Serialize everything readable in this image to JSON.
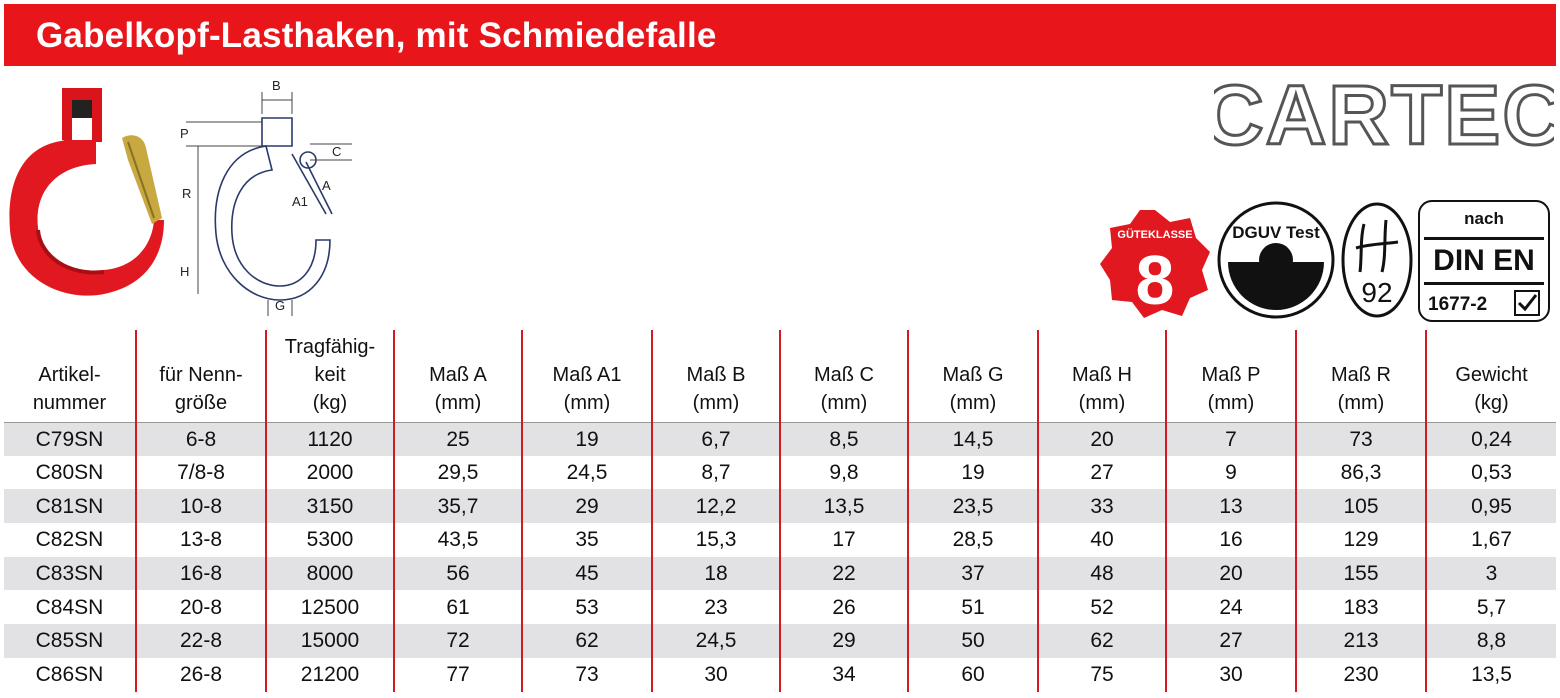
{
  "header": {
    "title": "Gabelkopf-Lasthaken, mit Schmiedefalle"
  },
  "brand": {
    "logo_text": "CARTEC"
  },
  "diagram": {
    "labels": {
      "b": "B",
      "p": "P",
      "c": "C",
      "r": "R",
      "a": "A",
      "a1": "A1",
      "h": "H",
      "g": "G"
    }
  },
  "badges": {
    "gk_text": "GÜTEKLASSE",
    "gk_number": "8",
    "dguv_text": "DGUV Test",
    "h92_text": "92",
    "din_nach": "nach",
    "din_main": "DIN EN",
    "din_number": "1677-2"
  },
  "colors": {
    "accent": "#e8161b",
    "row_shade": "#e2e2e4",
    "divider": "#d61820"
  },
  "table": {
    "headers": [
      [
        "Artikel-",
        "nummer"
      ],
      [
        "für Nenn-",
        "größe"
      ],
      [
        "Tragfähig-",
        "keit",
        "(kg)"
      ],
      [
        "Maß A",
        "(mm)"
      ],
      [
        "Maß A1",
        "(mm)"
      ],
      [
        "Maß B",
        "(mm)"
      ],
      [
        "Maß C",
        "(mm)"
      ],
      [
        "Maß G",
        "(mm)"
      ],
      [
        "Maß H",
        "(mm)"
      ],
      [
        "Maß P",
        "(mm)"
      ],
      [
        "Maß R",
        "(mm)"
      ],
      [
        "Gewicht",
        "(kg)"
      ]
    ],
    "rows": [
      [
        "C79SN",
        "6-8",
        "1120",
        "25",
        "19",
        "6,7",
        "8,5",
        "14,5",
        "20",
        "7",
        "73",
        "0,24"
      ],
      [
        "C80SN",
        "7/8-8",
        "2000",
        "29,5",
        "24,5",
        "8,7",
        "9,8",
        "19",
        "27",
        "9",
        "86,3",
        "0,53"
      ],
      [
        "C81SN",
        "10-8",
        "3150",
        "35,7",
        "29",
        "12,2",
        "13,5",
        "23,5",
        "33",
        "13",
        "105",
        "0,95"
      ],
      [
        "C82SN",
        "13-8",
        "5300",
        "43,5",
        "35",
        "15,3",
        "17",
        "28,5",
        "40",
        "16",
        "129",
        "1,67"
      ],
      [
        "C83SN",
        "16-8",
        "8000",
        "56",
        "45",
        "18",
        "22",
        "37",
        "48",
        "20",
        "155",
        "3"
      ],
      [
        "C84SN",
        "20-8",
        "12500",
        "61",
        "53",
        "23",
        "26",
        "51",
        "52",
        "24",
        "183",
        "5,7"
      ],
      [
        "C85SN",
        "22-8",
        "15000",
        "72",
        "62",
        "24,5",
        "29",
        "50",
        "62",
        "27",
        "213",
        "8,8"
      ],
      [
        "C86SN",
        "26-8",
        "21200",
        "77",
        "73",
        "30",
        "34",
        "60",
        "75",
        "30",
        "230",
        "13,5"
      ]
    ]
  }
}
